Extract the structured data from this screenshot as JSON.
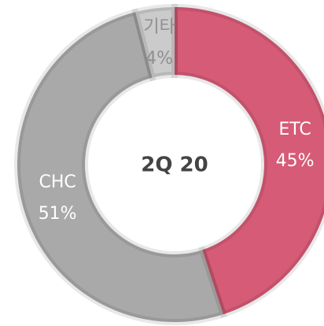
{
  "chart_data": {
    "type": "donut",
    "center_label": "2Q 20",
    "categories": [
      "ETC",
      "CHC",
      "기타"
    ],
    "values": [
      45,
      51,
      4
    ],
    "value_labels": [
      "45%",
      "51%",
      "4%"
    ],
    "colors": [
      "#d65b76",
      "#a9a9a9",
      "#cbcbcb"
    ]
  }
}
